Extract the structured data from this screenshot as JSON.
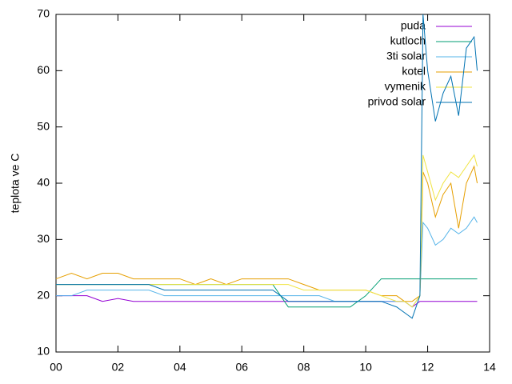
{
  "chart_data": {
    "type": "line",
    "ylabel": "teplota ve C",
    "x": [
      0,
      0.5,
      1,
      1.5,
      2,
      2.5,
      3,
      3.5,
      4,
      4.5,
      5,
      5.5,
      6,
      6.5,
      7,
      7.5,
      8,
      8.5,
      9,
      9.5,
      10,
      10.5,
      11,
      11.25,
      11.5,
      11.75,
      11.85,
      12,
      12.25,
      12.5,
      12.75,
      13,
      13.25,
      13.5,
      13.6
    ],
    "series": [
      {
        "name": "puda",
        "color": "#9400d3",
        "values": [
          20,
          20,
          20,
          19,
          19.5,
          19,
          19,
          19,
          19,
          19,
          19,
          19,
          19,
          19,
          19,
          19,
          19,
          19,
          19,
          19,
          19,
          19,
          19,
          19,
          18,
          19,
          19,
          19,
          19,
          19,
          19,
          19,
          19,
          19,
          19
        ]
      },
      {
        "name": "kutloch",
        "color": "#009e73",
        "values": [
          22,
          22,
          22,
          22,
          22,
          22,
          22,
          22,
          22,
          22,
          22,
          22,
          22,
          22,
          22,
          18,
          18,
          18,
          18,
          18,
          20,
          23,
          23,
          23,
          23,
          23,
          23,
          23,
          23,
          23,
          23,
          23,
          23,
          23,
          23
        ]
      },
      {
        "name": "3ti solar",
        "color": "#56b4e9",
        "values": [
          20,
          20,
          21,
          21,
          21,
          21,
          21,
          20,
          20,
          20,
          20,
          20,
          20,
          20,
          20,
          20,
          20,
          20,
          19,
          19,
          19,
          19,
          19,
          19,
          18,
          20,
          33,
          32,
          29,
          30,
          32,
          31,
          32,
          34,
          33
        ]
      },
      {
        "name": "kotel",
        "color": "#e69f00",
        "values": [
          23,
          24,
          23,
          24,
          24,
          23,
          23,
          23,
          23,
          22,
          23,
          22,
          23,
          23,
          23,
          23,
          22,
          21,
          21,
          21,
          21,
          20,
          20,
          19,
          19,
          20,
          42,
          40,
          34,
          38,
          40,
          32,
          40,
          43,
          40
        ]
      },
      {
        "name": "vymenik",
        "color": "#f0e442",
        "values": [
          22,
          22,
          22,
          22,
          22,
          22,
          22,
          22,
          22,
          22,
          22,
          22,
          22,
          22,
          22,
          22,
          21,
          21,
          21,
          21,
          21,
          20,
          19,
          19,
          18,
          20,
          45,
          42,
          37,
          40,
          42,
          41,
          43,
          45,
          43
        ]
      },
      {
        "name": "privod solar",
        "color": "#0072b2",
        "values": [
          22,
          22,
          22,
          22,
          22,
          22,
          22,
          21,
          21,
          21,
          21,
          21,
          21,
          21,
          21,
          19,
          19,
          19,
          19,
          19,
          19,
          19,
          18,
          17,
          16,
          20,
          70,
          60,
          51,
          56,
          59,
          52,
          64,
          66,
          60
        ]
      }
    ],
    "xlim": [
      0,
      14
    ],
    "xticks": [
      {
        "value": 0,
        "label": "00"
      },
      {
        "value": 2,
        "label": "02"
      },
      {
        "value": 4,
        "label": "04"
      },
      {
        "value": 6,
        "label": "06"
      },
      {
        "value": 8,
        "label": "08"
      },
      {
        "value": 10,
        "label": "10"
      },
      {
        "value": 12,
        "label": "12"
      },
      {
        "value": 14,
        "label": "14"
      }
    ],
    "ylim": [
      10,
      70
    ],
    "yticks": [
      10,
      20,
      30,
      40,
      50,
      60,
      70
    ],
    "legend": "top-right"
  }
}
